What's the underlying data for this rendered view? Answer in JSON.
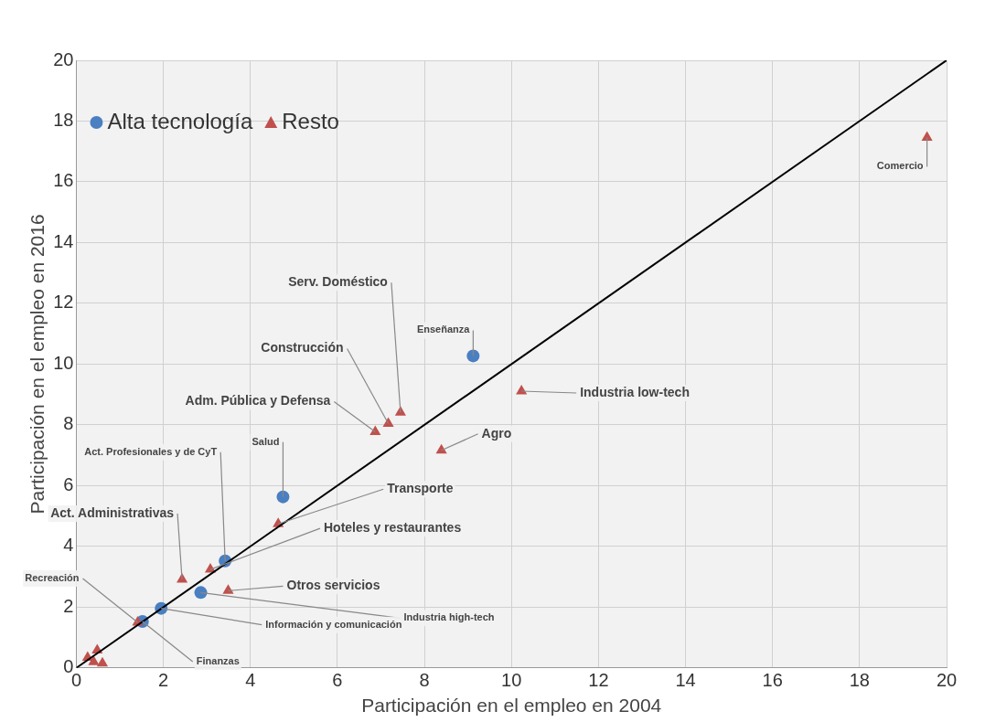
{
  "chart_data": {
    "type": "scatter",
    "xlabel": "Participación en el empleo en 2004",
    "ylabel": "Participación en el empleo en 2016",
    "xlim": [
      0,
      20
    ],
    "xticks": [
      0,
      2,
      4,
      6,
      8,
      10,
      12,
      14,
      16,
      18,
      20
    ],
    "ylim": [
      0,
      20
    ],
    "yticks": [
      0,
      2,
      4,
      6,
      8,
      10,
      12,
      14,
      16,
      18,
      20
    ],
    "grid": true,
    "legend": "top left",
    "series": [
      {
        "name": "Alta tecnología",
        "color": "#4a7fc1",
        "marker": "circle",
        "x": [
          9.12,
          4.75,
          3.42,
          2.86,
          1.95,
          1.52
        ],
        "values": [
          10.27,
          5.63,
          3.52,
          2.48,
          1.96,
          1.53
        ]
      },
      {
        "name": "Resto",
        "color": "#c0504d",
        "marker": "triangle",
        "x": [
          19.55,
          10.23,
          8.39,
          7.45,
          7.17,
          6.87,
          4.64,
          3.08,
          2.43,
          3.49,
          1.41,
          0.48,
          0.26,
          0.4,
          0.6
        ],
        "values": [
          17.46,
          9.11,
          7.16,
          8.41,
          8.04,
          7.77,
          4.74,
          3.24,
          2.91,
          2.54,
          1.5,
          0.58,
          0.34,
          0.2,
          0.15
        ]
      },
      {
        "type": "line",
        "color": "#000000",
        "marker": "none",
        "x": [
          0,
          20
        ],
        "values": [
          0,
          20
        ]
      }
    ],
    "annotations": [
      {
        "text": "Comercio",
        "x": 19.55,
        "y": 17.46
      },
      {
        "text": "Industria low-tech",
        "x": 10.23,
        "y": 9.11
      },
      {
        "text": "Agro",
        "x": 8.39,
        "y": 7.16
      },
      {
        "text": "Serv. Doméstico",
        "x": 7.45,
        "y": 8.41
      },
      {
        "text": "Construcción",
        "x": 7.17,
        "y": 8.04
      },
      {
        "text": "Adm. Pública y Defensa",
        "x": 6.87,
        "y": 7.77
      },
      {
        "text": "Enseñanza",
        "x": 9.12,
        "y": 10.27
      },
      {
        "text": "Salud",
        "x": 4.75,
        "y": 5.63
      },
      {
        "text": "Act. Profesionales y de CyT",
        "x": 3.42,
        "y": 3.52
      },
      {
        "text": "Transporte",
        "x": 4.64,
        "y": 4.74
      },
      {
        "text": "Hoteles y restaurantes",
        "x": 3.08,
        "y": 3.24
      },
      {
        "text": "Act. Administrativas",
        "x": 2.43,
        "y": 2.91
      },
      {
        "text": "Otros servicios",
        "x": 3.49,
        "y": 2.54
      },
      {
        "text": "Industria high-tech",
        "x": 2.86,
        "y": 2.48
      },
      {
        "text": "Información y comunicación",
        "x": 1.95,
        "y": 1.96
      },
      {
        "text": "Recreación",
        "x": 1.41,
        "y": 1.5
      },
      {
        "text": "Finanzas",
        "x": 1.52,
        "y": 1.53
      }
    ]
  }
}
